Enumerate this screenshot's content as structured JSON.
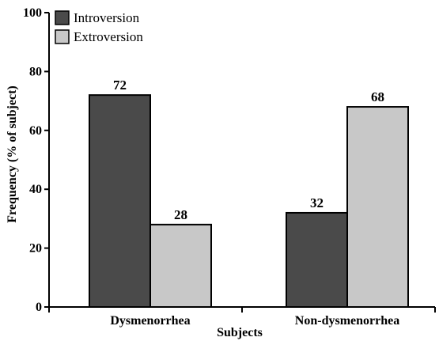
{
  "chart_data": {
    "type": "bar",
    "categories": [
      "Dysmenorrhea",
      "Non-dysmenorrhea"
    ],
    "series": [
      {
        "name": "Introversion",
        "values": [
          72,
          32
        ],
        "color": "#4a4a4a"
      },
      {
        "name": "Extroversion",
        "values": [
          28,
          68
        ],
        "color": "#c8c8c8"
      }
    ],
    "title": "",
    "xlabel": "Subjects",
    "ylabel": "Frequency (% of subject)",
    "ylim": [
      0,
      100
    ],
    "yticks": [
      0,
      20,
      40,
      60,
      80,
      100
    ],
    "data_labels": [
      [
        "72",
        "28"
      ],
      [
        "32",
        "68"
      ]
    ],
    "grid": false,
    "legend": "top-left"
  }
}
